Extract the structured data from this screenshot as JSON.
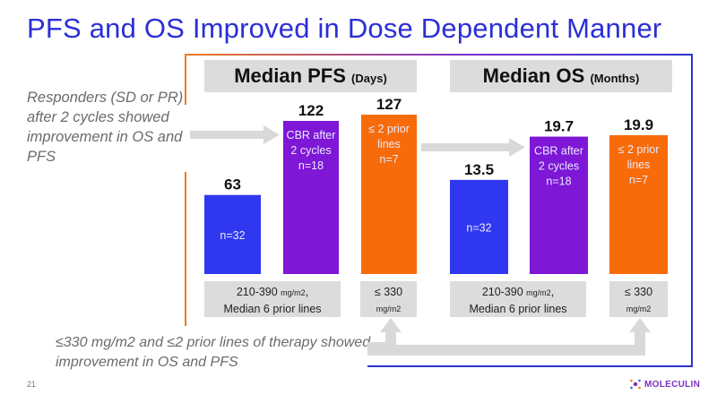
{
  "slide": {
    "title": "PFS and OS Improved in Dose Dependent Manner",
    "side_note": "Responders (SD or PR) after 2 cycles showed improvement in OS and PFS",
    "bottom_note": "≤330 mg/m2 and ≤2 prior lines of therapy showed improvement in OS and PFS",
    "slide_number": "21",
    "logo_text": "MOLECULIN"
  },
  "chart_data": [
    {
      "type": "bar",
      "title": "Median PFS",
      "title_unit": "(Days)",
      "categories": [
        "n=32",
        "CBR after 2 cycles n=18",
        "≤ 2 prior lines n=7"
      ],
      "values": [
        63,
        122,
        127
      ],
      "value_labels": [
        "63",
        "122",
        "127"
      ],
      "bar_text": [
        [
          "n=32"
        ],
        [
          "CBR after",
          "2 cycles",
          "n=18"
        ],
        [
          "≤ 2 prior",
          "lines",
          "n=7"
        ]
      ],
      "colors": [
        "#2f38ee",
        "#7e17d6",
        "#f86b0a"
      ],
      "ylim": [
        0,
        127
      ],
      "groups": [
        {
          "line1_main": "210-390 ",
          "line1_unit": "mg/m2",
          "line1_end": ",",
          "line2": "Median 6 prior lines"
        },
        {
          "line1_main": "≤ 330",
          "line2": "mg/m2"
        }
      ]
    },
    {
      "type": "bar",
      "title": "Median OS",
      "title_unit": "(Months)",
      "categories": [
        "n=32",
        "CBR after 2 cycles n=18",
        "≤ 2 prior lines n=7"
      ],
      "values": [
        13.5,
        19.7,
        19.9
      ],
      "value_labels": [
        "13.5",
        "19.7",
        "19.9"
      ],
      "bar_text": [
        [
          "n=32"
        ],
        [
          "CBR after",
          "2 cycles",
          "n=18"
        ],
        [
          "≤ 2 prior",
          "lines",
          "n=7"
        ]
      ],
      "colors": [
        "#2f38ee",
        "#7e17d6",
        "#f86b0a"
      ],
      "ylim": [
        0,
        19.9
      ],
      "groups": [
        {
          "line1_main": "210-390 ",
          "line1_unit": "mg/m2",
          "line1_end": ",",
          "line2": "Median 6 prior lines"
        },
        {
          "line1_main": "≤ 330",
          "line2": "mg/m2"
        }
      ]
    }
  ]
}
